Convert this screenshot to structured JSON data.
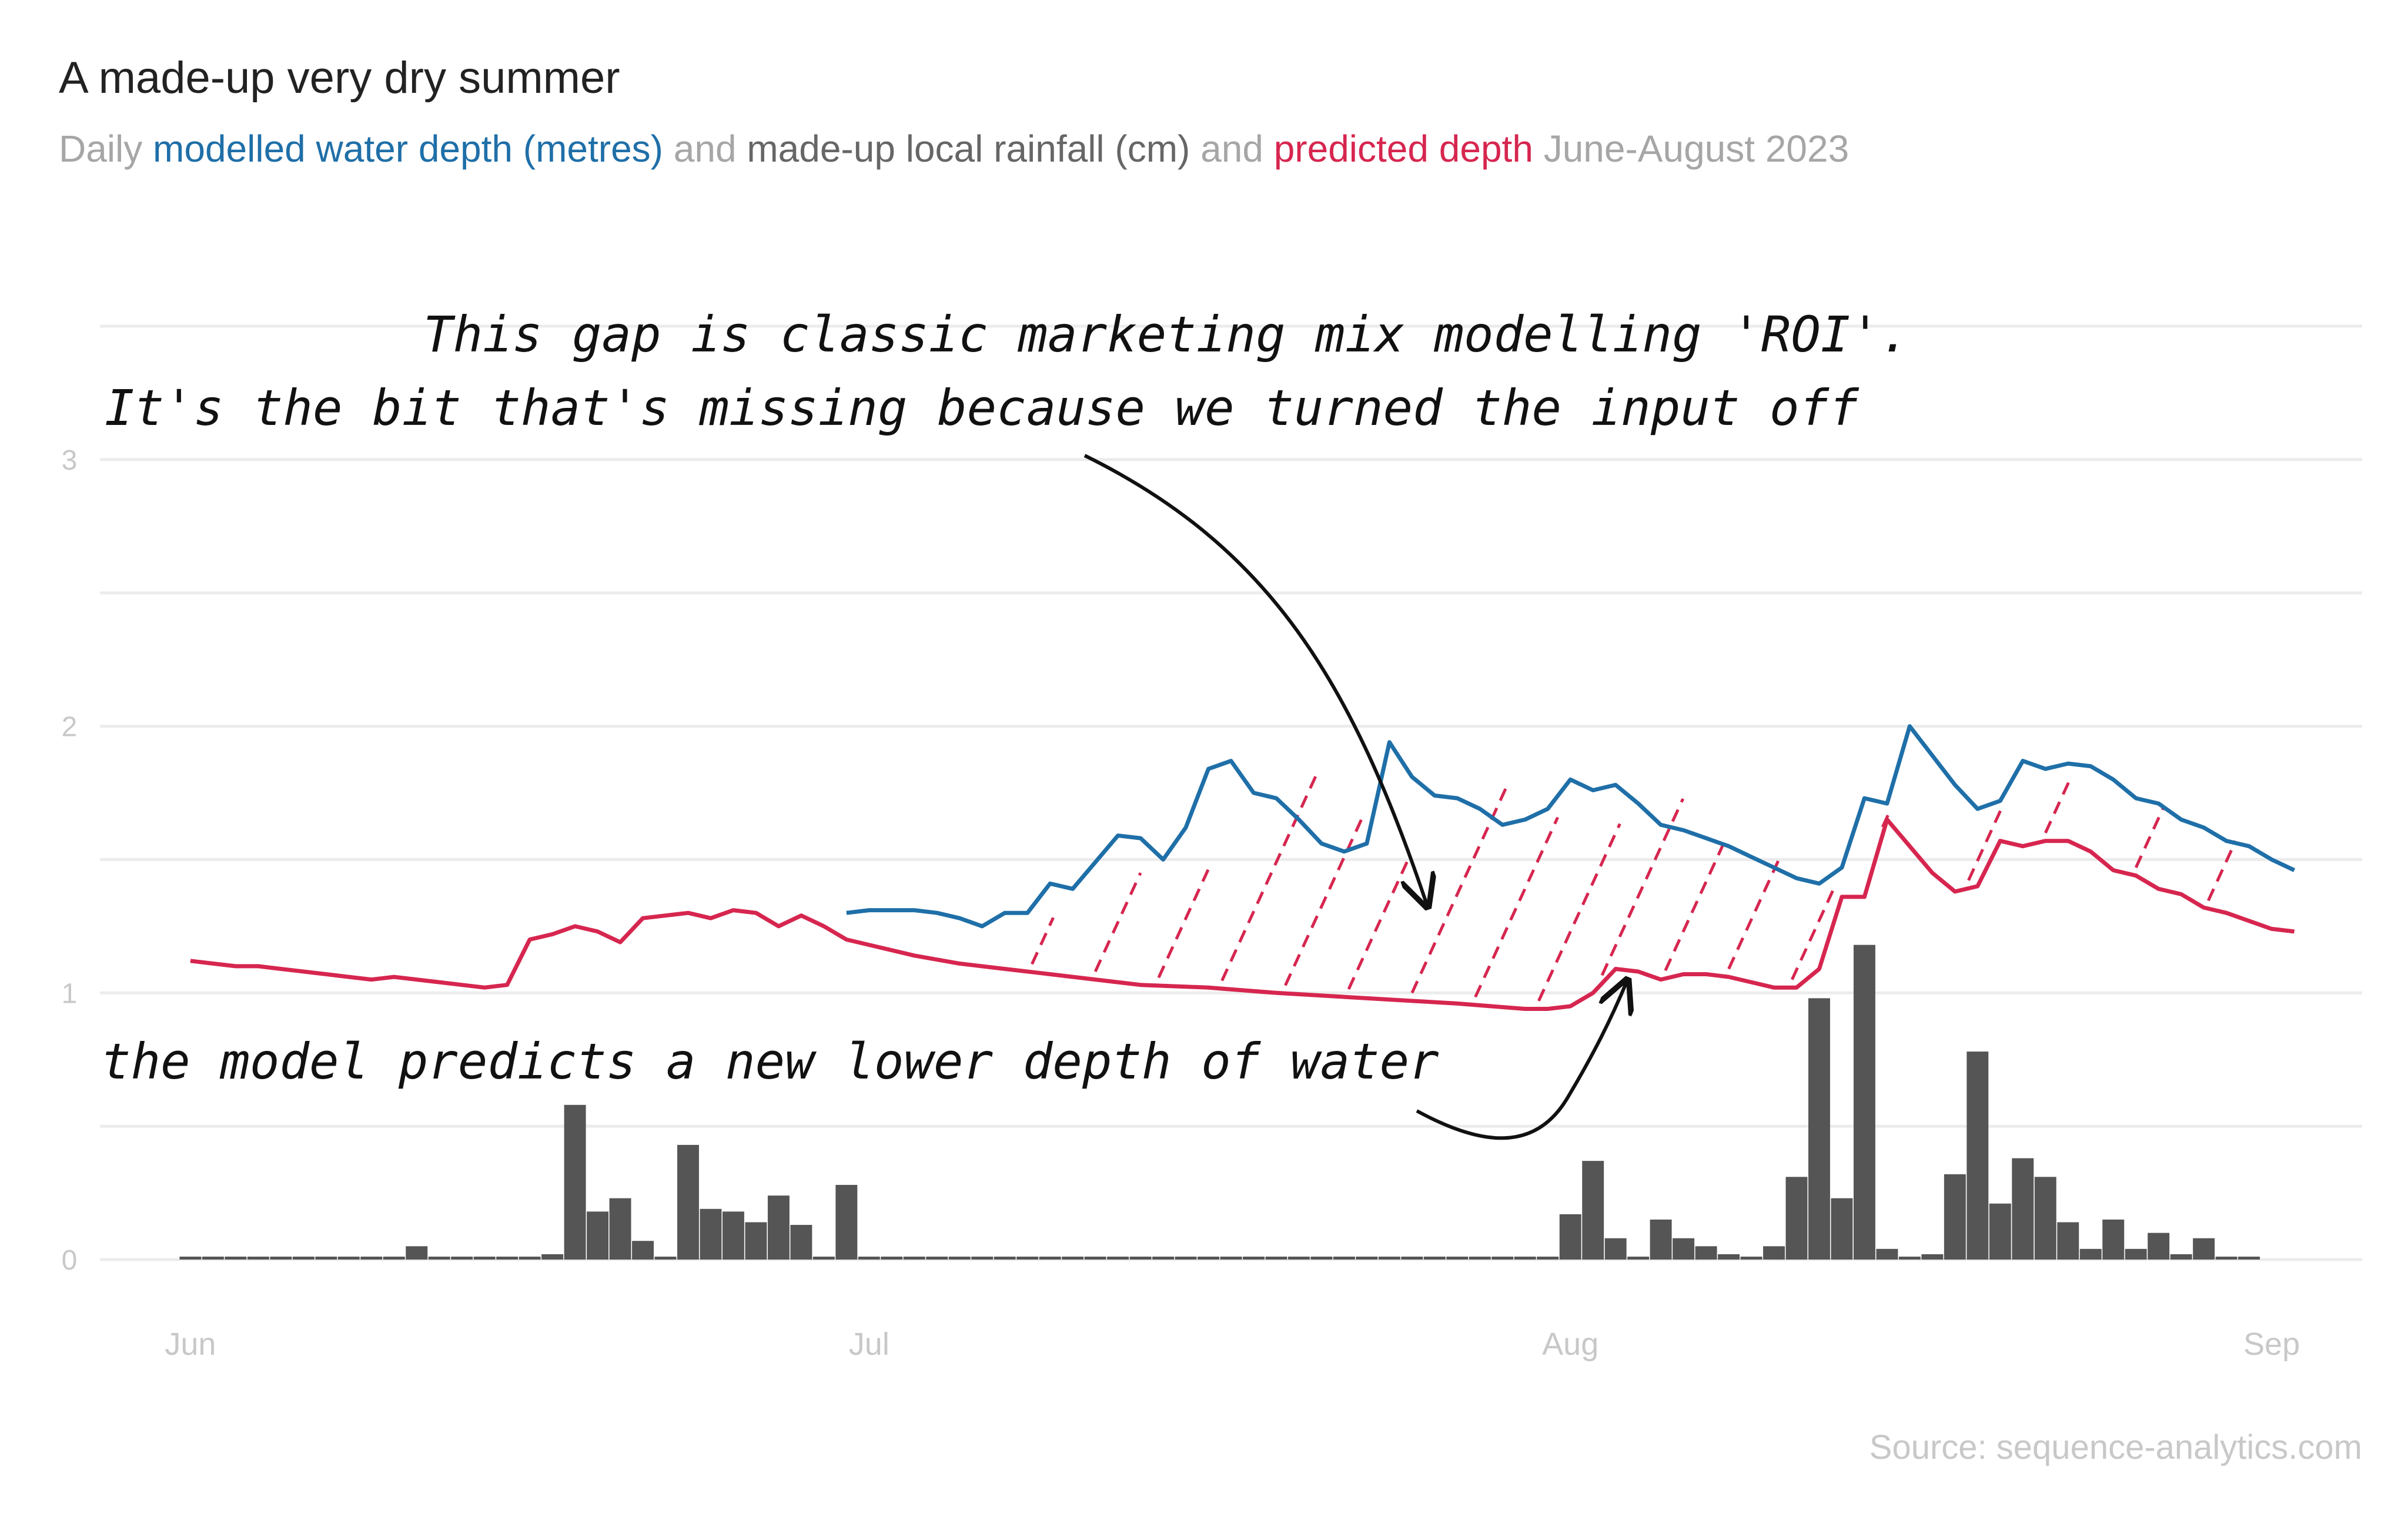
{
  "colors": {
    "depth": "#1f6fa8",
    "predicted": "#d6264f",
    "rain": "#555555",
    "muted": "#a6a6a6",
    "rain_label": "#666666",
    "grid": "#ececec"
  },
  "chart_data": {
    "type": "line",
    "title": "A made-up very dry summer",
    "subtitle": {
      "p1": "Daily ",
      "depth_label": "modelled water depth (metres)",
      "p2": " and ",
      "rain_label": "made-up local rainfall (cm)",
      "p3": " and ",
      "pred_label": "predicted depth",
      "p4": " June-August 2023"
    },
    "x_ticks": [
      {
        "label": "Jun",
        "x": 0
      },
      {
        "label": "Jul",
        "x": 30
      },
      {
        "label": "Aug",
        "x": 61
      },
      {
        "label": "Sep",
        "x": 92
      }
    ],
    "y_ticks": [
      0,
      1,
      2,
      3
    ],
    "ylim": [
      0,
      3.5
    ],
    "x_range": [
      -4,
      96
    ],
    "grid": true,
    "source": "Source: sequence-analytics.com",
    "rainfall": [
      0,
      0,
      0,
      0,
      0.01,
      0,
      0,
      0,
      0,
      0,
      0.05,
      0,
      0,
      0,
      0,
      0,
      0.02,
      0.58,
      0.18,
      0.23,
      0.07,
      0,
      0.43,
      0.19,
      0.18,
      0.14,
      0.24,
      0.13,
      0,
      0.28,
      0,
      0,
      0,
      0,
      0,
      0,
      0,
      0,
      0,
      0,
      0,
      0,
      0,
      0,
      0,
      0,
      0,
      0,
      0,
      0,
      0,
      0,
      0,
      0,
      0,
      0,
      0,
      0,
      0,
      0,
      0,
      0.17,
      0.37,
      0.08,
      0.01,
      0.15,
      0.08,
      0.05,
      0.02,
      0,
      0.05,
      0.31,
      0.98,
      0.23,
      1.18,
      0.04,
      0,
      0.02,
      0.32,
      0.78,
      0.21,
      0.38,
      0.31,
      0.14,
      0.04,
      0.15,
      0.04,
      0.1,
      0.02,
      0.08,
      0.01,
      0.01
    ],
    "depth": [
      [
        29,
        1.3
      ],
      [
        30,
        1.31
      ],
      [
        32,
        1.31
      ],
      [
        33,
        1.3
      ],
      [
        34,
        1.28
      ],
      [
        35,
        1.25
      ],
      [
        36,
        1.3
      ],
      [
        37,
        1.3
      ],
      [
        38,
        1.41
      ],
      [
        39,
        1.39
      ],
      [
        40,
        1.49
      ],
      [
        41,
        1.59
      ],
      [
        42,
        1.58
      ],
      [
        43,
        1.5
      ],
      [
        44,
        1.62
      ],
      [
        45,
        1.84
      ],
      [
        46,
        1.87
      ],
      [
        47,
        1.75
      ],
      [
        48,
        1.73
      ],
      [
        49,
        1.65
      ],
      [
        50,
        1.56
      ],
      [
        51,
        1.53
      ],
      [
        52,
        1.56
      ],
      [
        53,
        1.94
      ],
      [
        54,
        1.81
      ],
      [
        55,
        1.74
      ],
      [
        56,
        1.73
      ],
      [
        57,
        1.69
      ],
      [
        58,
        1.63
      ],
      [
        59,
        1.65
      ],
      [
        60,
        1.69
      ],
      [
        61,
        1.8
      ],
      [
        62,
        1.76
      ],
      [
        63,
        1.78
      ],
      [
        64,
        1.71
      ],
      [
        65,
        1.63
      ],
      [
        66,
        1.61
      ],
      [
        67,
        1.58
      ],
      [
        68,
        1.55
      ],
      [
        69,
        1.51
      ],
      [
        70,
        1.47
      ],
      [
        71,
        1.43
      ],
      [
        72,
        1.41
      ],
      [
        73,
        1.47
      ],
      [
        74,
        1.73
      ],
      [
        75,
        1.71
      ],
      [
        76,
        2.0
      ],
      [
        77,
        1.89
      ],
      [
        78,
        1.78
      ],
      [
        79,
        1.69
      ],
      [
        80,
        1.72
      ],
      [
        81,
        1.87
      ],
      [
        82,
        1.84
      ],
      [
        83,
        1.86
      ],
      [
        84,
        1.85
      ],
      [
        85,
        1.8
      ],
      [
        86,
        1.73
      ],
      [
        87,
        1.71
      ],
      [
        88,
        1.65
      ],
      [
        89,
        1.62
      ],
      [
        90,
        1.57
      ],
      [
        91,
        1.55
      ],
      [
        92,
        1.5
      ],
      [
        93,
        1.46
      ]
    ],
    "predicted": [
      [
        0,
        1.12
      ],
      [
        1,
        1.11
      ],
      [
        2,
        1.1
      ],
      [
        3,
        1.1
      ],
      [
        4,
        1.09
      ],
      [
        5,
        1.08
      ],
      [
        6,
        1.07
      ],
      [
        7,
        1.06
      ],
      [
        8,
        1.05
      ],
      [
        9,
        1.06
      ],
      [
        10,
        1.05
      ],
      [
        11,
        1.04
      ],
      [
        12,
        1.03
      ],
      [
        13,
        1.02
      ],
      [
        14,
        1.03
      ],
      [
        15,
        1.2
      ],
      [
        16,
        1.22
      ],
      [
        17,
        1.25
      ],
      [
        18,
        1.23
      ],
      [
        19,
        1.19
      ],
      [
        20,
        1.28
      ],
      [
        21,
        1.29
      ],
      [
        22,
        1.3
      ],
      [
        23,
        1.28
      ],
      [
        24,
        1.31
      ],
      [
        25,
        1.3
      ],
      [
        26,
        1.25
      ],
      [
        27,
        1.29
      ],
      [
        28,
        1.25
      ],
      [
        29,
        1.2
      ],
      [
        30,
        1.18
      ],
      [
        32,
        1.14
      ],
      [
        34,
        1.11
      ],
      [
        36,
        1.09
      ],
      [
        38,
        1.07
      ],
      [
        40,
        1.05
      ],
      [
        42,
        1.03
      ],
      [
        45,
        1.02
      ],
      [
        48,
        1.0
      ],
      [
        52,
        0.98
      ],
      [
        56,
        0.96
      ],
      [
        59,
        0.94
      ],
      [
        60,
        0.94
      ],
      [
        61,
        0.95
      ],
      [
        62,
        1.0
      ],
      [
        63,
        1.09
      ],
      [
        64,
        1.08
      ],
      [
        65,
        1.05
      ],
      [
        66,
        1.07
      ],
      [
        67,
        1.07
      ],
      [
        68,
        1.06
      ],
      [
        69,
        1.04
      ],
      [
        70,
        1.02
      ],
      [
        71,
        1.02
      ],
      [
        72,
        1.09
      ],
      [
        73,
        1.36
      ],
      [
        74,
        1.36
      ],
      [
        75,
        1.65
      ],
      [
        76,
        1.55
      ],
      [
        77,
        1.45
      ],
      [
        78,
        1.38
      ],
      [
        79,
        1.4
      ],
      [
        80,
        1.57
      ],
      [
        81,
        1.55
      ],
      [
        82,
        1.57
      ],
      [
        83,
        1.57
      ],
      [
        84,
        1.53
      ],
      [
        85,
        1.46
      ],
      [
        86,
        1.44
      ],
      [
        87,
        1.39
      ],
      [
        88,
        1.37
      ],
      [
        89,
        1.32
      ],
      [
        90,
        1.3
      ],
      [
        91,
        1.27
      ],
      [
        92,
        1.24
      ],
      [
        93,
        1.23
      ]
    ],
    "hatch_x": [
      37.2,
      40,
      42.8,
      45.6,
      48.4,
      51.2,
      54,
      56.8,
      59.6,
      62.4,
      65.2,
      68,
      70.8,
      74.8,
      78.6,
      82,
      86,
      89.2
    ]
  },
  "annotations": {
    "roi_line1": "This gap is classic marketing mix modelling 'ROI'.",
    "roi_line2": "It's the bit that's missing because we turned the input off",
    "model_note": "the model predicts a new lower depth of water"
  }
}
